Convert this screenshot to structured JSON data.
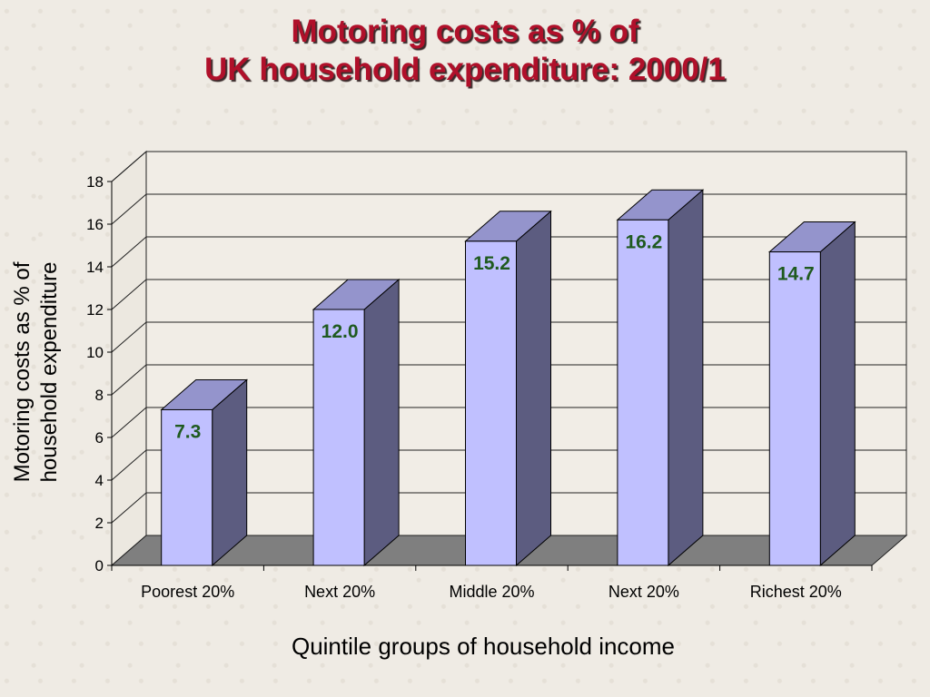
{
  "chart_data": {
    "type": "bar",
    "title_line1": "Motoring costs as % of",
    "title_line2": "UK household expenditure: 2000/1",
    "ylabel_line1": "Motoring costs as % of",
    "ylabel_line2": "household expenditure",
    "xlabel": "Quintile groups of household income",
    "categories": [
      "Poorest 20%",
      "Next 20%",
      "Middle 20%",
      "Next 20%",
      "Richest 20%"
    ],
    "values": [
      7.3,
      12.0,
      15.2,
      16.2,
      14.7
    ],
    "value_labels": [
      "7.3",
      "12.0",
      "15.2",
      "16.2",
      "14.7"
    ],
    "ylim": [
      0,
      18
    ],
    "yticks": [
      0,
      2,
      4,
      6,
      8,
      10,
      12,
      14,
      16,
      18
    ],
    "grid": true,
    "legend": "none",
    "colors": {
      "bar_front": "#c0c0ff",
      "bar_side": "#5c5c80",
      "bar_top": "#9494cc",
      "value_label": "#1f5a1f",
      "floor": "#7f7f7f",
      "title": "#b0102a"
    }
  }
}
